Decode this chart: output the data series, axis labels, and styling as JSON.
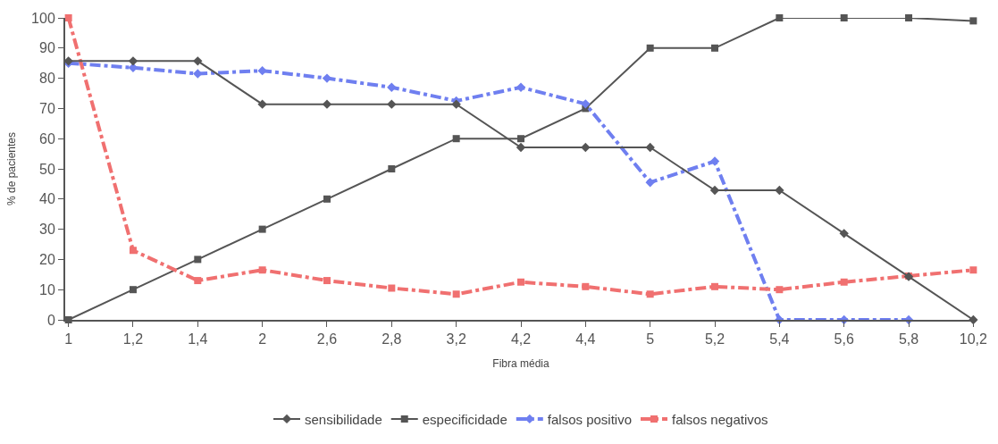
{
  "chart_data": {
    "type": "line",
    "xlabel": "Fibra média",
    "ylabel": "% de pacientes",
    "categories": [
      "1",
      "1,2",
      "1,4",
      "2",
      "2,6",
      "2,8",
      "3,2",
      "4,2",
      "4,4",
      "5",
      "5,2",
      "5,4",
      "5,6",
      "5,8",
      "10,2"
    ],
    "series": [
      {
        "name": "sensibilidade",
        "color": "#555555",
        "marker": "diamond",
        "line_style": "solid",
        "values": [
          85.7,
          85.7,
          85.7,
          71.4,
          71.4,
          71.4,
          71.4,
          57.1,
          57.1,
          57.1,
          42.9,
          42.9,
          28.6,
          14.3,
          0
        ]
      },
      {
        "name": "especificidade",
        "color": "#555555",
        "marker": "square",
        "line_style": "solid",
        "values": [
          0,
          10,
          20,
          30,
          40,
          50,
          60,
          60,
          70,
          90,
          90,
          100,
          100,
          100,
          99
        ]
      },
      {
        "name": "falsos positivo",
        "color": "#6f7ff0",
        "marker": "diamond",
        "line_style": "dashed",
        "values": [
          85,
          83.5,
          81.5,
          82.5,
          80,
          77,
          72.5,
          77,
          71.5,
          45.5,
          52.5,
          0,
          0,
          0,
          null
        ]
      },
      {
        "name": "falsos negativos",
        "color": "#f07070",
        "marker": "square",
        "line_style": "dashed",
        "values": [
          100,
          23,
          13,
          16.5,
          13,
          10.5,
          8.5,
          12.5,
          11,
          8.5,
          11,
          10,
          12.5,
          14.5,
          16.5
        ]
      }
    ],
    "ylim": [
      0,
      100
    ],
    "yticks": [
      0,
      10,
      20,
      30,
      40,
      50,
      60,
      70,
      80,
      90,
      100
    ],
    "legend": "bottom"
  }
}
